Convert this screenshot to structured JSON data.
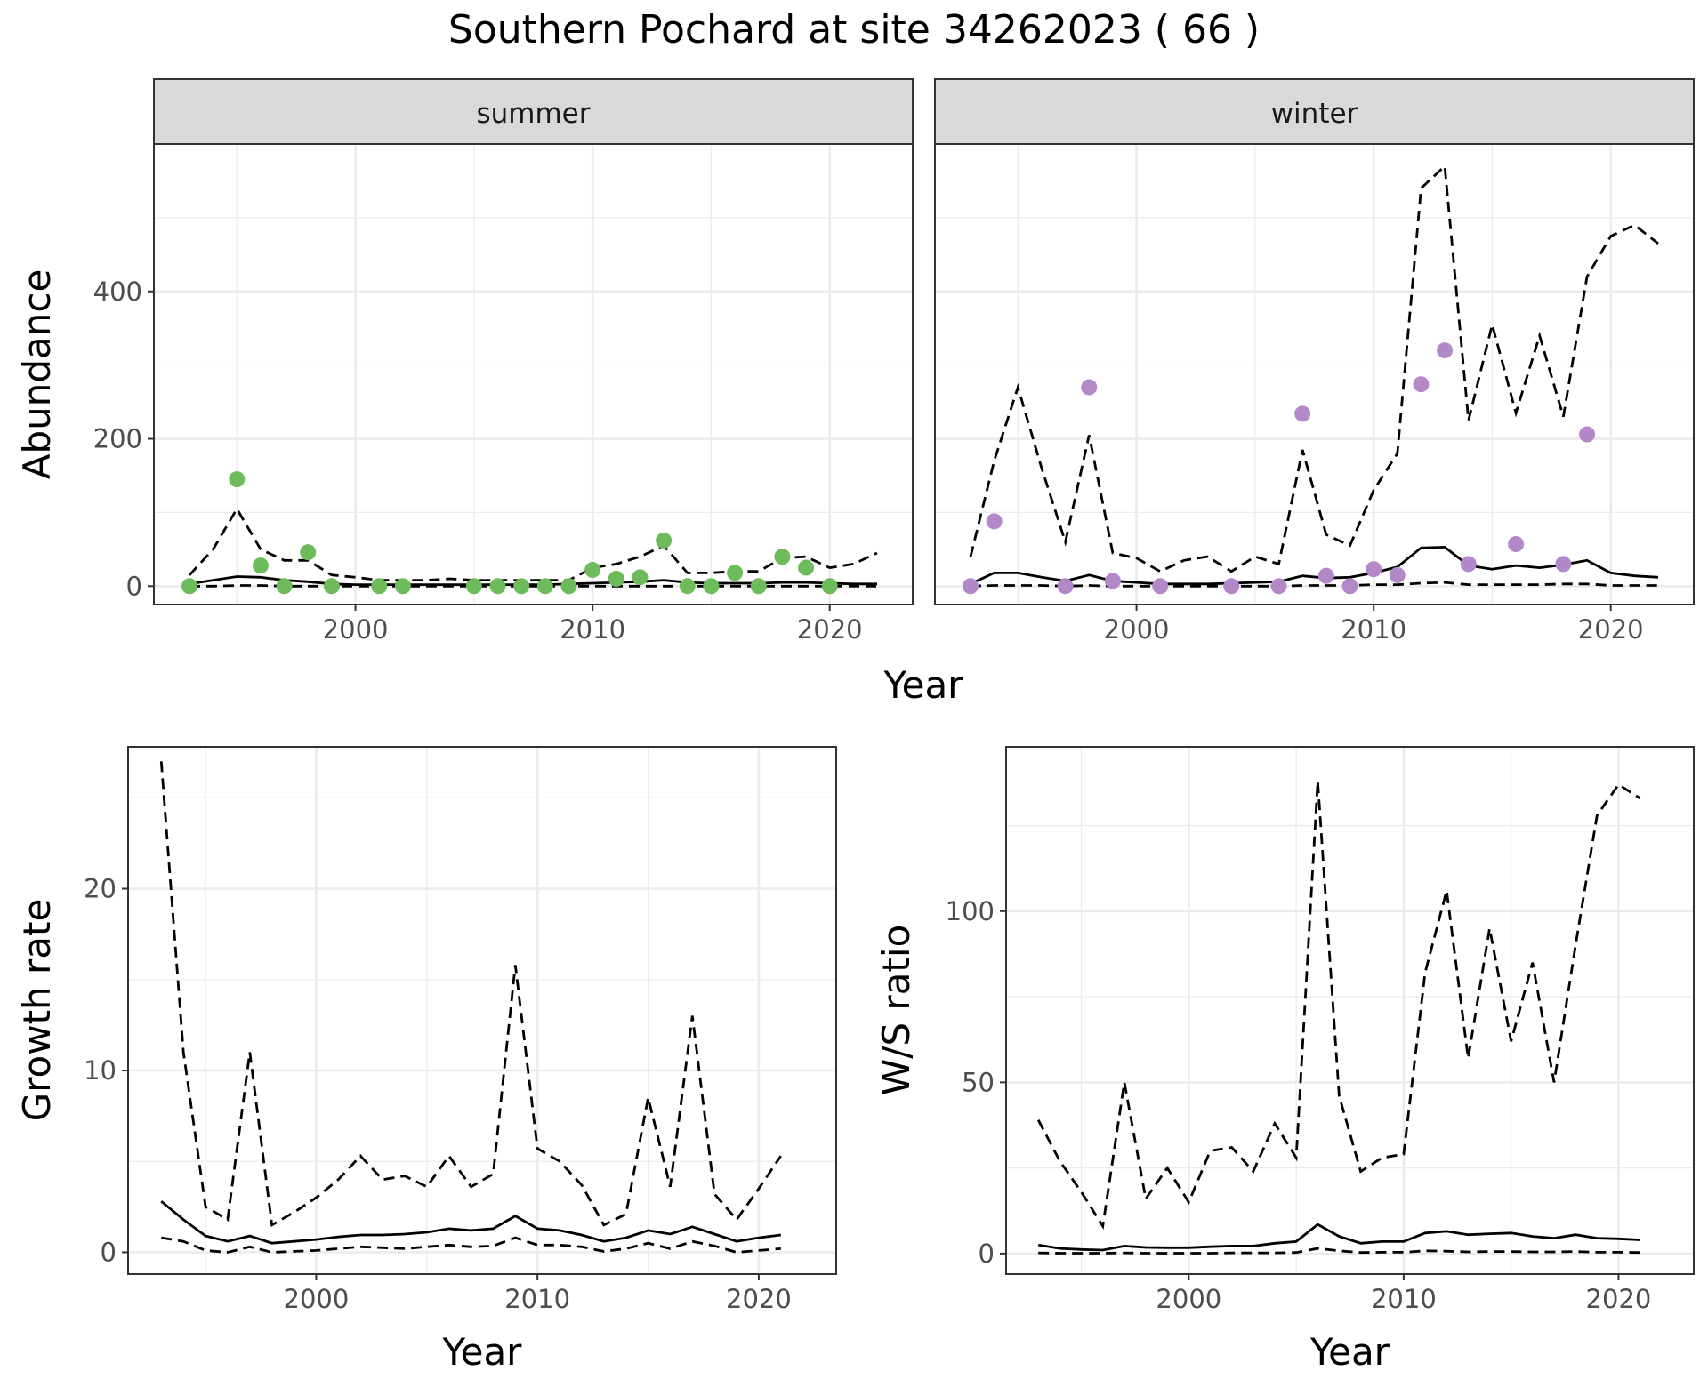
{
  "title": "Southern Pochard at site 34262023 ( 66 )",
  "colors": {
    "summer_points": "#6dbb5a",
    "winter_points": "#b388c8",
    "strip_fill": "#d9d9d9",
    "grid": "#ebebeb",
    "line": "#000000"
  },
  "chart_data": [
    {
      "type": "line",
      "facets": [
        "summer",
        "winter"
      ],
      "xlabel": "Year",
      "ylabel": "Abundance",
      "xlim": [
        1991.5,
        2023.5
      ],
      "ylim": [
        -25,
        600
      ],
      "xticks": [
        2000,
        2010,
        2020
      ],
      "yticks": [
        0,
        200,
        400
      ],
      "grid": true,
      "panels": [
        {
          "facet": "summer",
          "point_color": "#6dbb5a",
          "points": {
            "x": [
              1993,
              1995,
              1996,
              1997,
              1998,
              1999,
              2001,
              2002,
              2005,
              2006,
              2007,
              2008,
              2009,
              2010,
              2011,
              2012,
              2013,
              2014,
              2015,
              2016,
              2017,
              2018,
              2019,
              2020
            ],
            "y": [
              0,
              145,
              28,
              0,
              46,
              0,
              0,
              0,
              0,
              0,
              0,
              0,
              0,
              22,
              10,
              12,
              62,
              0,
              0,
              18,
              0,
              40,
              25,
              0
            ]
          },
          "series": [
            {
              "x": [
                1993,
                1994,
                1995,
                1996,
                1997,
                1998,
                1999,
                2000,
                2001,
                2002,
                2003,
                2004,
                2005,
                2006,
                2007,
                2008,
                2009,
                2010,
                2011,
                2012,
                2013,
                2014,
                2015,
                2016,
                2017,
                2018,
                2019,
                2020,
                2021,
                2022
              ],
              "y": [
                3,
                8,
                13,
                12,
                8,
                6,
                3,
                2,
                2,
                2,
                2,
                2,
                2,
                2,
                2,
                2,
                3,
                4,
                5,
                6,
                8,
                5,
                4,
                4,
                4,
                5,
                5,
                4,
                3,
                3
              ]
            },
            {
              "x": [
                1993,
                1994,
                1995,
                1996,
                1997,
                1998,
                1999,
                2000,
                2001,
                2002,
                2003,
                2004,
                2005,
                2006,
                2007,
                2008,
                2009,
                2010,
                2011,
                2012,
                2013,
                2014,
                2015,
                2016,
                2017,
                2018,
                2019,
                2020,
                2021,
                2022
              ],
              "y": [
                15,
                50,
                105,
                50,
                35,
                35,
                15,
                12,
                8,
                8,
                8,
                10,
                8,
                8,
                8,
                8,
                8,
                25,
                30,
                40,
                55,
                18,
                18,
                20,
                20,
                38,
                40,
                25,
                30,
                45
              ]
            },
            {
              "x": [
                1993,
                1994,
                1995,
                1996,
                1997,
                1998,
                1999,
                2000,
                2001,
                2002,
                2003,
                2004,
                2005,
                2006,
                2007,
                2008,
                2009,
                2010,
                2011,
                2012,
                2013,
                2014,
                2015,
                2016,
                2017,
                2018,
                2019,
                2020,
                2021,
                2022
              ],
              "y": [
                0,
                0,
                1,
                1,
                0,
                0,
                0,
                0,
                0,
                0,
                0,
                0,
                0,
                0,
                0,
                0,
                0,
                0,
                0,
                0,
                0,
                0,
                0,
                0,
                0,
                0,
                0,
                0,
                0,
                0
              ]
            }
          ]
        },
        {
          "facet": "winter",
          "point_color": "#b388c8",
          "points": {
            "x": [
              1993,
              1994,
              1997,
              1998,
              1999,
              2001,
              2004,
              2006,
              2007,
              2008,
              2009,
              2010,
              2011,
              2012,
              2013,
              2014,
              2016,
              2018,
              2019
            ],
            "y": [
              0,
              88,
              0,
              270,
              7,
              0,
              0,
              0,
              234,
              14,
              0,
              23,
              15,
              274,
              320,
              30,
              57,
              30,
              206
            ]
          },
          "series": [
            {
              "x": [
                1993,
                1994,
                1995,
                1996,
                1997,
                1998,
                1999,
                2000,
                2001,
                2002,
                2003,
                2004,
                2005,
                2006,
                2007,
                2008,
                2009,
                2010,
                2011,
                2012,
                2013,
                2014,
                2015,
                2016,
                2017,
                2018,
                2019,
                2020,
                2021,
                2022
              ],
              "y": [
                3,
                18,
                18,
                12,
                7,
                15,
                7,
                5,
                3,
                3,
                3,
                4,
                5,
                6,
                14,
                11,
                12,
                18,
                26,
                52,
                53,
                28,
                23,
                28,
                25,
                29,
                35,
                18,
                14,
                12
              ]
            },
            {
              "x": [
                1993,
                1994,
                1995,
                1996,
                1997,
                1998,
                1999,
                2000,
                2001,
                2002,
                2003,
                2004,
                2005,
                2006,
                2007,
                2008,
                2009,
                2010,
                2011,
                2012,
                2013,
                2014,
                2015,
                2016,
                2017,
                2018,
                2019,
                2020,
                2021,
                2022
              ],
              "y": [
                40,
                170,
                270,
                160,
                60,
                205,
                45,
                38,
                20,
                35,
                40,
                20,
                40,
                30,
                185,
                70,
                55,
                130,
                180,
                540,
                570,
                225,
                355,
                235,
                340,
                230,
                420,
                475,
                490,
                465
              ]
            },
            {
              "x": [
                1993,
                1994,
                1995,
                1996,
                1997,
                1998,
                1999,
                2000,
                2001,
                2002,
                2003,
                2004,
                2005,
                2006,
                2007,
                2008,
                2009,
                2010,
                2011,
                2012,
                2013,
                2014,
                2015,
                2016,
                2017,
                2018,
                2019,
                2020,
                2021,
                2022
              ],
              "y": [
                0,
                1,
                1,
                1,
                0,
                1,
                0,
                0,
                0,
                0,
                0,
                0,
                0,
                0,
                1,
                1,
                1,
                2,
                2,
                4,
                5,
                2,
                2,
                2,
                2,
                3,
                3,
                1,
                1,
                1
              ]
            }
          ]
        }
      ]
    },
    {
      "type": "line",
      "xlabel": "Year",
      "ylabel": "Growth rate",
      "xlim": [
        1991.5,
        2023.5
      ],
      "ylim": [
        -1.2,
        27.8
      ],
      "xticks": [
        2000,
        2010,
        2020
      ],
      "yticks": [
        0,
        10,
        20
      ],
      "grid": true,
      "series": [
        {
          "x": [
            1993,
            1994,
            1995,
            1996,
            1997,
            1998,
            1999,
            2000,
            2001,
            2002,
            2003,
            2004,
            2005,
            2006,
            2007,
            2008,
            2009,
            2010,
            2011,
            2012,
            2013,
            2014,
            2015,
            2016,
            2017,
            2018,
            2019,
            2020,
            2021
          ],
          "y": [
            2.8,
            1.8,
            0.9,
            0.6,
            0.9,
            0.5,
            0.6,
            0.7,
            0.85,
            0.95,
            0.95,
            1.0,
            1.1,
            1.3,
            1.2,
            1.3,
            2.0,
            1.3,
            1.2,
            0.95,
            0.6,
            0.8,
            1.2,
            1.0,
            1.4,
            1.0,
            0.6,
            0.8,
            0.95
          ]
        },
        {
          "x": [
            1993,
            1994,
            1995,
            1996,
            1997,
            1998,
            1999,
            2000,
            2001,
            2002,
            2003,
            2004,
            2005,
            2006,
            2007,
            2008,
            2009,
            2010,
            2011,
            2012,
            2013,
            2014,
            2015,
            2016,
            2017,
            2018,
            2019,
            2020,
            2021
          ],
          "y": [
            27,
            11,
            2.5,
            1.8,
            11,
            1.5,
            2.2,
            3.0,
            4.0,
            5.3,
            4.0,
            4.2,
            3.6,
            5.3,
            3.6,
            4.3,
            15.8,
            5.7,
            5.0,
            3.7,
            1.5,
            2.1,
            8.5,
            3.6,
            13,
            3.2,
            1.8,
            3.5,
            5.3
          ]
        },
        {
          "x": [
            1993,
            1994,
            1995,
            1996,
            1997,
            1998,
            1999,
            2000,
            2001,
            2002,
            2003,
            2004,
            2005,
            2006,
            2007,
            2008,
            2009,
            2010,
            2011,
            2012,
            2013,
            2014,
            2015,
            2016,
            2017,
            2018,
            2019,
            2020,
            2021
          ],
          "y": [
            0.8,
            0.6,
            0.1,
            0.0,
            0.3,
            0.0,
            0.05,
            0.1,
            0.2,
            0.3,
            0.25,
            0.2,
            0.3,
            0.4,
            0.3,
            0.35,
            0.8,
            0.4,
            0.4,
            0.3,
            0.05,
            0.2,
            0.5,
            0.2,
            0.6,
            0.35,
            0.0,
            0.1,
            0.2
          ]
        }
      ]
    },
    {
      "type": "line",
      "xlabel": "Year",
      "ylabel": "W/S ratio",
      "xlim": [
        1991.5,
        2023.5
      ],
      "ylim": [
        -6,
        148
      ],
      "xticks": [
        2000,
        2010,
        2020
      ],
      "yticks": [
        0,
        50,
        100
      ],
      "grid": true,
      "series": [
        {
          "x": [
            1993,
            1994,
            1995,
            1996,
            1997,
            1998,
            1999,
            2000,
            2001,
            2002,
            2003,
            2004,
            2005,
            2006,
            2007,
            2008,
            2009,
            2010,
            2011,
            2012,
            2013,
            2014,
            2015,
            2016,
            2017,
            2018,
            2019,
            2020,
            2021
          ],
          "y": [
            2.5,
            1.5,
            1.2,
            1.0,
            2.2,
            1.8,
            1.7,
            1.7,
            2.0,
            2.2,
            2.2,
            3.0,
            3.5,
            8.5,
            5.0,
            3.0,
            3.5,
            3.5,
            6.0,
            6.5,
            5.5,
            5.8,
            6.0,
            5.0,
            4.5,
            5.5,
            4.5,
            4.3,
            4.0
          ]
        },
        {
          "x": [
            1993,
            1994,
            1995,
            1996,
            1997,
            1998,
            1999,
            2000,
            2001,
            2002,
            2003,
            2004,
            2005,
            2006,
            2007,
            2008,
            2009,
            2010,
            2011,
            2012,
            2013,
            2014,
            2015,
            2016,
            2017,
            2018,
            2019,
            2020,
            2021
          ],
          "y": [
            39,
            27,
            18,
            8,
            50,
            16,
            25,
            15,
            30,
            31,
            24,
            38,
            28,
            138,
            46,
            24,
            28,
            29,
            82,
            106,
            57,
            95,
            62,
            85,
            50,
            90,
            128,
            137,
            133
          ]
        },
        {
          "x": [
            1993,
            1994,
            1995,
            1996,
            1997,
            1998,
            1999,
            2000,
            2001,
            2002,
            2003,
            2004,
            2005,
            2006,
            2007,
            2008,
            2009,
            2010,
            2011,
            2012,
            2013,
            2014,
            2015,
            2016,
            2017,
            2018,
            2019,
            2020,
            2021
          ],
          "y": [
            0.2,
            0.1,
            0.1,
            0.1,
            0.2,
            0.1,
            0.1,
            0.1,
            0.1,
            0.2,
            0.2,
            0.2,
            0.3,
            1.5,
            0.8,
            0.3,
            0.4,
            0.4,
            0.8,
            0.7,
            0.5,
            0.6,
            0.6,
            0.5,
            0.5,
            0.6,
            0.4,
            0.4,
            0.3
          ]
        }
      ]
    }
  ]
}
